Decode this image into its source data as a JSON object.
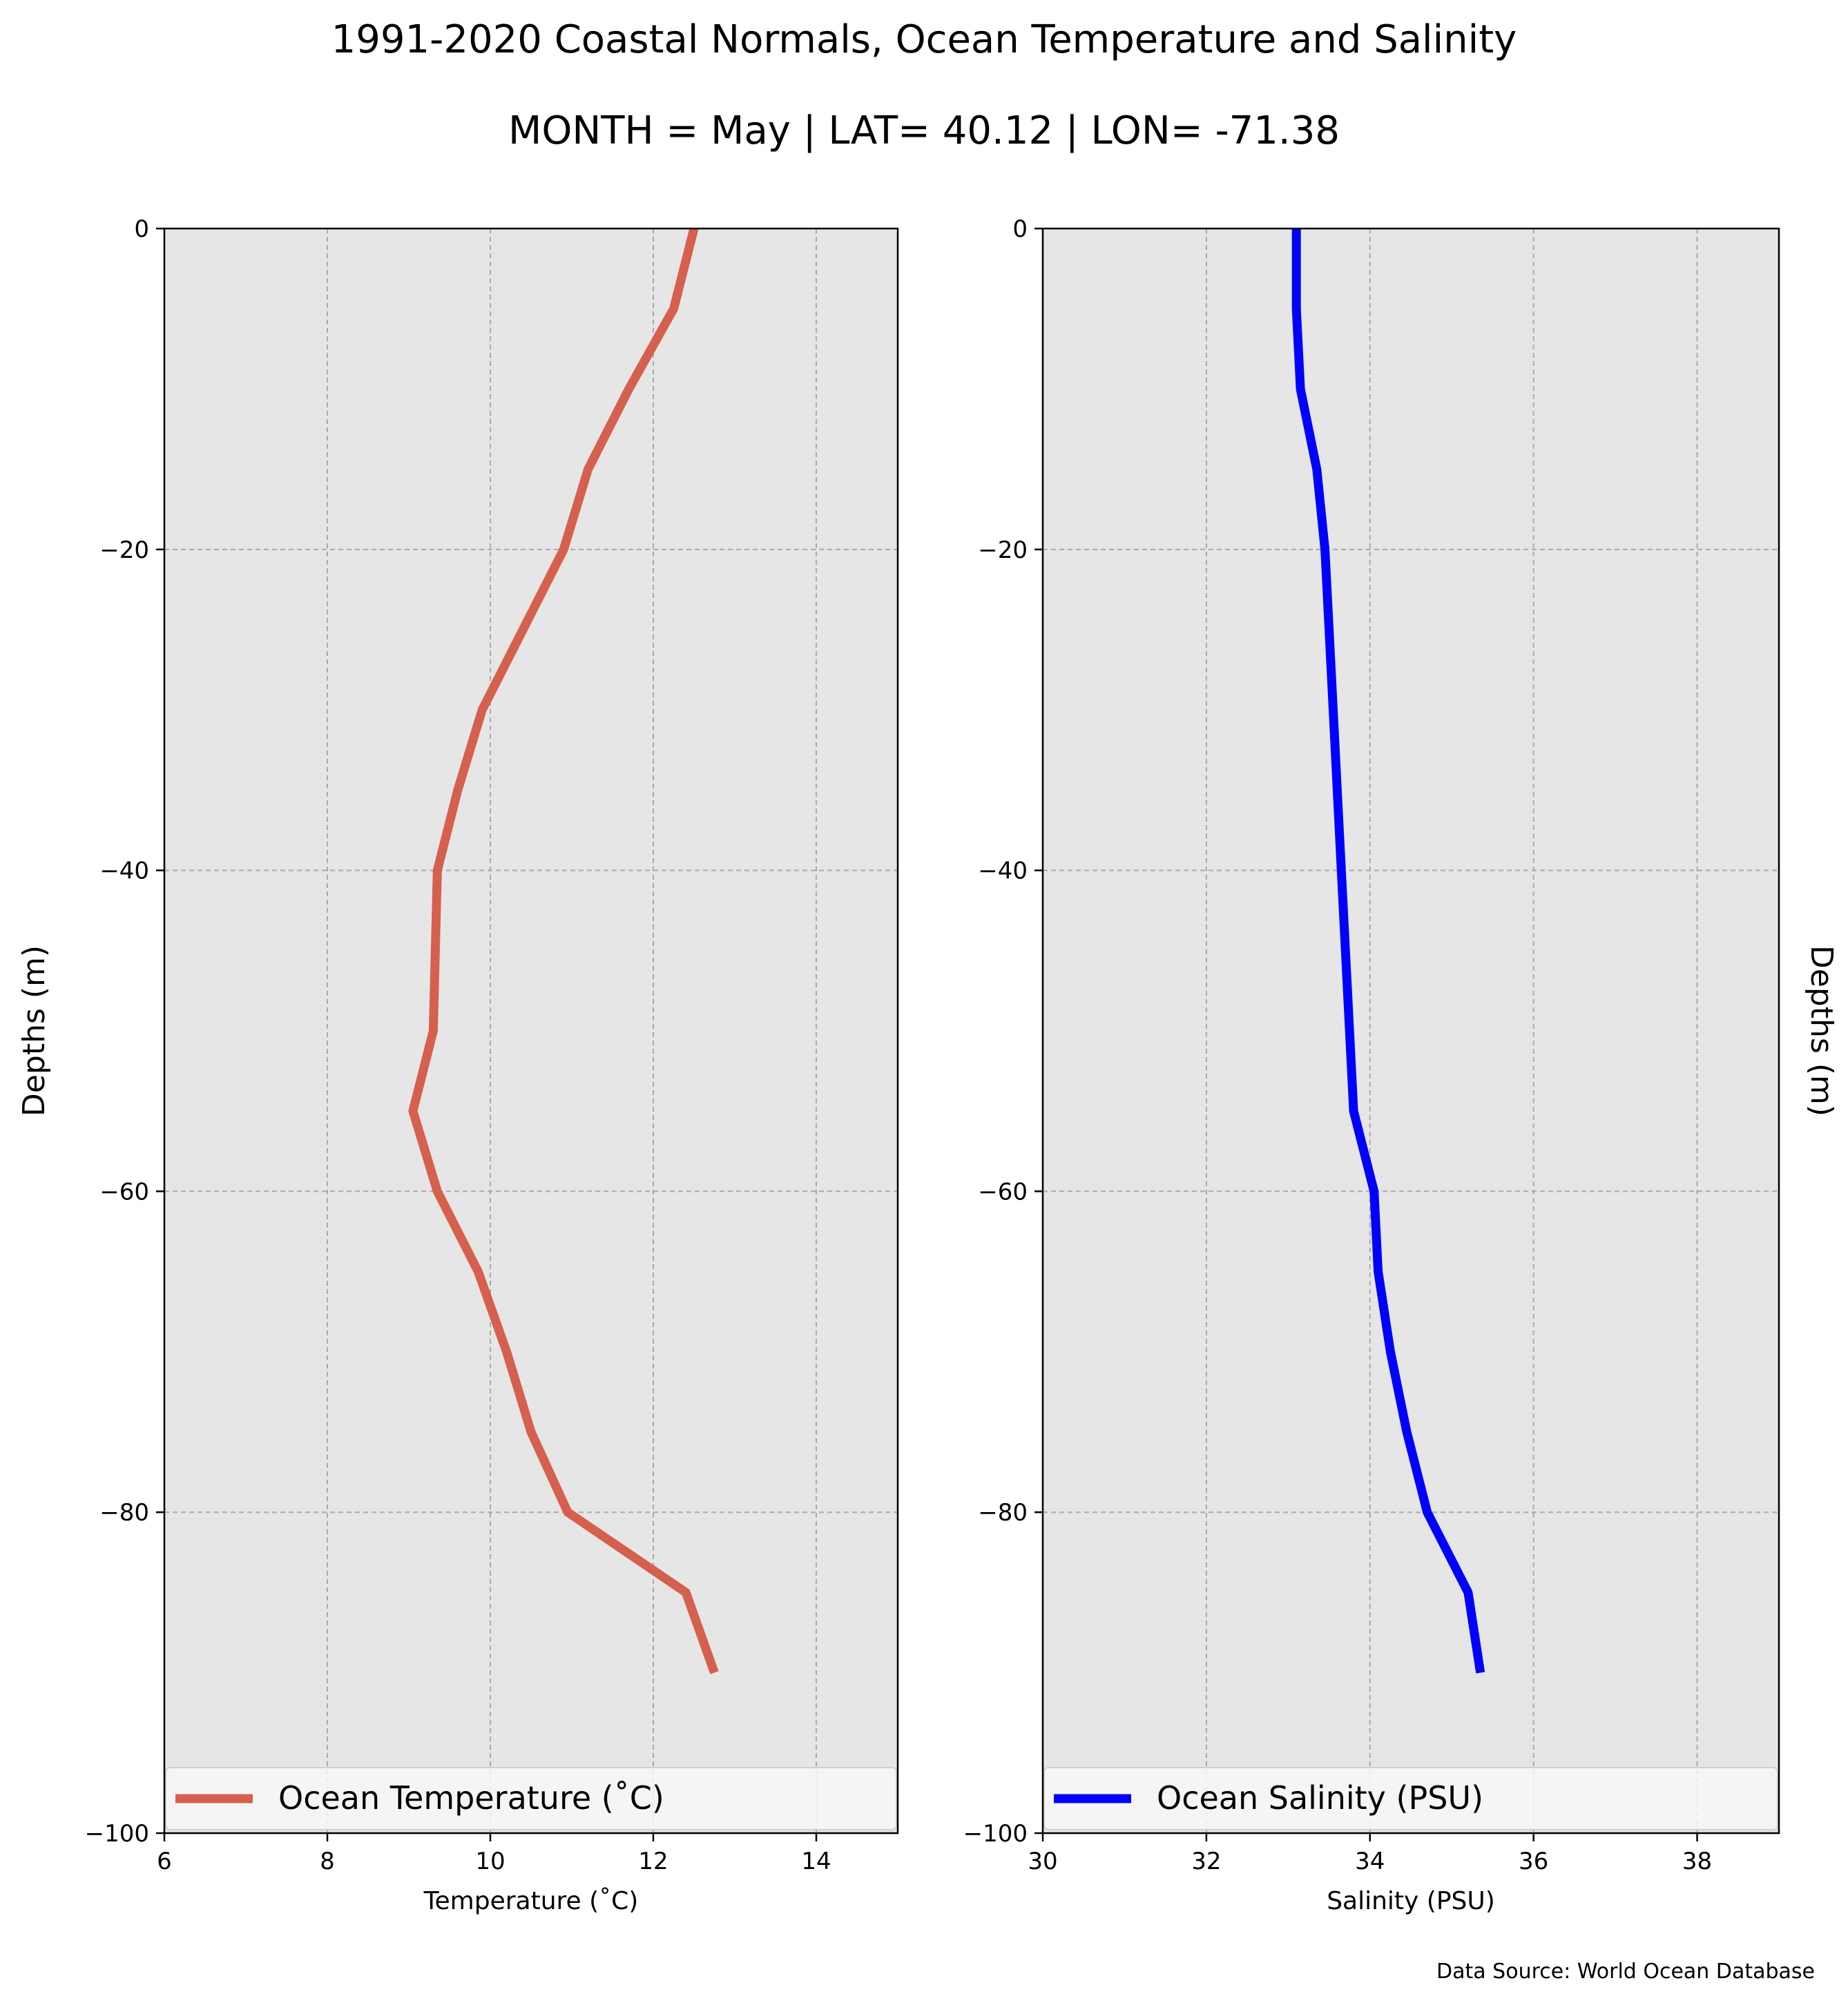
{
  "title": "1991-2020 Coastal Normals, Ocean Temperature and Salinity",
  "subtitle": "MONTH = May | LAT= 40.12 | LON= -71.38",
  "source": "Data Source: World Ocean Database",
  "colors": {
    "temperature": "#d5604d",
    "salinity": "#0000ff",
    "panel_bg": "#e6e6e6"
  },
  "chart_data": [
    {
      "type": "line",
      "xlabel": "Temperature ($^\\circ$C)",
      "xlabel_display": "Temperature (˚C)",
      "ylabel": "Depths (m)",
      "xlim": [
        6,
        15
      ],
      "ylim": [
        -100,
        0
      ],
      "xticks": [
        6,
        8,
        10,
        12,
        14
      ],
      "yticks": [
        0,
        -20,
        -40,
        -60,
        -80,
        -100
      ],
      "yticklabels": [
        "0",
        "−20",
        "−40",
        "−60",
        "−80",
        "−100"
      ],
      "grid": true,
      "legend_position": "bottom",
      "series": [
        {
          "name": "Ocean Temperature (˚C)",
          "x": [
            12.5,
            12.25,
            11.7,
            11.2,
            10.9,
            10.4,
            9.9,
            9.6,
            9.35,
            9.3,
            9.05,
            9.35,
            9.85,
            10.2,
            10.5,
            10.95,
            12.4,
            12.75
          ],
          "y": [
            0,
            -5,
            -10,
            -15,
            -20,
            -25,
            -30,
            -35,
            -40,
            -50,
            -55,
            -60,
            -65,
            -70,
            -75,
            -80,
            -85,
            -90
          ]
        }
      ]
    },
    {
      "type": "line",
      "xlabel": "Salinity (PSU)",
      "ylabel": "Depths (m)",
      "xlim": [
        30,
        39
      ],
      "ylim": [
        -100,
        0
      ],
      "xticks": [
        30,
        32,
        34,
        36,
        38
      ],
      "yticks": [
        0,
        -20,
        -40,
        -60,
        -80,
        -100
      ],
      "yticklabels": [
        "0",
        "−20",
        "−40",
        "−60",
        "−80",
        "−100"
      ],
      "grid": true,
      "legend_position": "bottom",
      "series": [
        {
          "name": "Ocean Salinity (PSU)",
          "x": [
            33.1,
            33.1,
            33.15,
            33.35,
            33.45,
            33.5,
            33.55,
            33.6,
            33.65,
            33.75,
            33.8,
            34.05,
            34.1,
            34.25,
            34.45,
            34.7,
            35.2,
            35.35
          ],
          "y": [
            0,
            -5,
            -10,
            -15,
            -20,
            -25,
            -30,
            -35,
            -40,
            -50,
            -55,
            -60,
            -65,
            -70,
            -75,
            -80,
            -85,
            -90
          ]
        }
      ]
    }
  ]
}
